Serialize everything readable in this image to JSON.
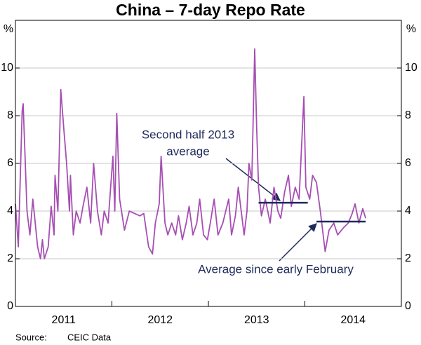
{
  "chart_data": {
    "type": "line",
    "title": "China – 7-day Repo Rate",
    "y_unit": "%",
    "source_label": "Source:",
    "source": "CEIC Data",
    "xlim": [
      2011,
      2015
    ],
    "xtick_marks": [
      2012,
      2013,
      2014
    ],
    "xticks": [
      {
        "value": 2011.5,
        "label": "2011"
      },
      {
        "value": 2012.5,
        "label": "2012"
      },
      {
        "value": 2013.5,
        "label": "2013"
      },
      {
        "value": 2014.5,
        "label": "2014"
      }
    ],
    "ylim": [
      0,
      12
    ],
    "yticks": [
      0,
      2,
      4,
      6,
      8,
      10
    ],
    "grid": true,
    "x": [
      2011.0,
      2011.03,
      2011.07,
      2011.08,
      2011.12,
      2011.15,
      2011.18,
      2011.23,
      2011.26,
      2011.28,
      2011.3,
      2011.34,
      2011.37,
      2011.4,
      2011.41,
      2011.44,
      2011.47,
      2011.5,
      2011.53,
      2011.56,
      2011.57,
      2011.6,
      2011.63,
      2011.67,
      2011.7,
      2011.74,
      2011.78,
      2011.81,
      2011.85,
      2011.89,
      2011.92,
      2011.96,
      2012.01,
      2012.03,
      2012.05,
      2012.08,
      2012.13,
      2012.18,
      2012.29,
      2012.33,
      2012.38,
      2012.42,
      2012.45,
      2012.49,
      2012.51,
      2012.55,
      2012.58,
      2012.62,
      2012.66,
      2012.69,
      2012.73,
      2012.77,
      2012.8,
      2012.84,
      2012.88,
      2012.91,
      2012.95,
      2012.99,
      2013.02,
      2013.06,
      2013.1,
      2013.15,
      2013.21,
      2013.24,
      2013.28,
      2013.31,
      2013.37,
      2013.4,
      2013.42,
      2013.45,
      2013.48,
      2013.5,
      2013.52,
      2013.55,
      2013.59,
      2013.64,
      2013.68,
      2013.72,
      2013.75,
      2013.79,
      2013.83,
      2013.86,
      2013.9,
      2013.94,
      2013.99,
      2014.01,
      2014.05,
      2014.08,
      2014.12,
      2014.16,
      2014.21,
      2014.25,
      2014.3,
      2014.34,
      2014.4,
      2014.45,
      2014.49,
      2014.52,
      2014.56,
      2014.6,
      2014.63
    ],
    "series": [
      {
        "color": "#a64fb3",
        "values": [
          4.3,
          2.5,
          8.2,
          8.5,
          4.0,
          3.0,
          4.5,
          2.5,
          2.0,
          2.8,
          2.0,
          2.5,
          4.2,
          3.0,
          5.5,
          4.0,
          9.1,
          7.5,
          6.0,
          4.0,
          5.5,
          3.0,
          4.0,
          3.5,
          4.2,
          5.0,
          3.5,
          6.0,
          4.0,
          3.0,
          4.0,
          3.5,
          6.3,
          4.0,
          8.1,
          4.5,
          3.2,
          4.0,
          3.8,
          3.9,
          2.5,
          2.2,
          3.5,
          4.3,
          6.3,
          3.5,
          3.0,
          3.5,
          3.0,
          3.8,
          2.8,
          3.5,
          4.2,
          3.0,
          3.5,
          4.5,
          3.0,
          2.8,
          3.5,
          4.5,
          3.0,
          3.5,
          4.5,
          3.0,
          3.8,
          5.0,
          3.0,
          4.0,
          6.0,
          5.3,
          10.8,
          7.5,
          5.0,
          3.8,
          4.5,
          3.5,
          5.0,
          4.0,
          3.7,
          4.8,
          5.5,
          4.2,
          5.0,
          4.5,
          8.8,
          5.0,
          4.5,
          5.5,
          5.2,
          4.0,
          2.3,
          3.2,
          3.5,
          3.0,
          3.3,
          3.5,
          3.9,
          4.3,
          3.5,
          4.1,
          3.7
        ]
      }
    ],
    "annotations": [
      {
        "text": [
          "Second half 2013",
          "average"
        ],
        "value": 4.35,
        "x_start": 2013.52,
        "x_end": 2014.03
      },
      {
        "text": [
          "Average since early February"
        ],
        "value": 3.56,
        "x_start": 2014.12,
        "x_end": 2014.63
      }
    ]
  }
}
